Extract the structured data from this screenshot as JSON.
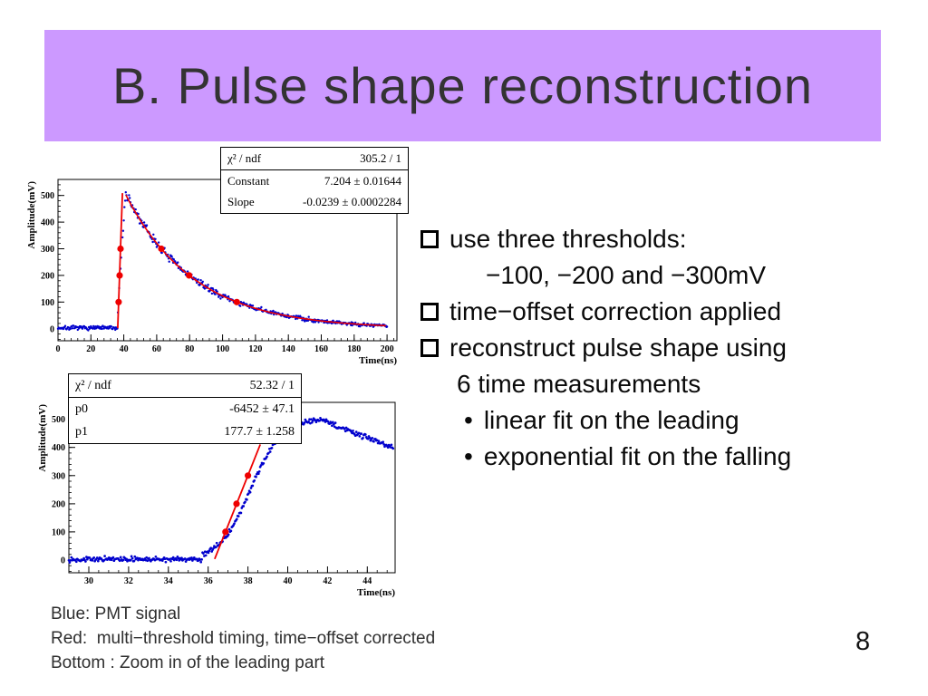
{
  "slide": {
    "title": "B. Pulse shape reconstruction",
    "page_number": "8",
    "accent_color": "#CC99FF"
  },
  "bullets": {
    "dot_char": "•",
    "items": [
      {
        "marker": "square",
        "text": "use three thresholds:"
      },
      {
        "marker": "none",
        "text": "−100, −200 and −300mV"
      },
      {
        "marker": "square",
        "text": "time−offset correction applied"
      },
      {
        "marker": "square",
        "text": "reconstruct pulse shape using"
      },
      {
        "marker": "none",
        "text": "6 time measurements"
      },
      {
        "marker": "dot",
        "text": "linear fit on the leading"
      },
      {
        "marker": "dot",
        "text": "exponential fit on the falling"
      }
    ]
  },
  "caption": {
    "line1": "Blue: PMT signal",
    "line2": "Red:  multi−threshold timing, time−offset corrected",
    "line3": "Bottom : Zoom in of the leading part"
  },
  "chart_data": [
    {
      "id": "pulse-full",
      "type": "scatter",
      "title": "",
      "xlabel": "Time(ns)",
      "ylabel": "Amplitude(mV)",
      "xlim": [
        0,
        206
      ],
      "ylim": [
        -45,
        560
      ],
      "xticks": [
        0,
        20,
        40,
        60,
        80,
        100,
        120,
        140,
        160,
        180,
        200
      ],
      "yticks": [
        0,
        100,
        200,
        300,
        400,
        500
      ],
      "x_minor_div": 5,
      "y_minor_div": 5,
      "grid": false,
      "legend": "none",
      "colors": {
        "signal": "#0000CD",
        "fit": "#EE0000"
      },
      "series_names": {
        "signal": "PMT signal (blue)",
        "fit": "multi−threshold fit (red)"
      },
      "stats": {
        "rows": [
          {
            "label": "χ² / ndf",
            "value": "305.2 / 1"
          },
          {
            "label": "Constant",
            "value": "7.204 ± 0.01644"
          },
          {
            "label": "Slope",
            "value": "-0.0239 ± 0.0002284"
          }
        ]
      },
      "signal_model": {
        "seed": 7,
        "t_start": 0,
        "t_end": 200,
        "t_step": 0.4,
        "segments": [
          {
            "until": 36.0,
            "type": "flat",
            "level": 3,
            "noise": 11
          },
          {
            "until": 41.2,
            "type": "rise_pow",
            "from": 36.0,
            "span": 5.2,
            "peak": 515,
            "pow": 0.85,
            "noise": 16
          },
          {
            "until": 200.2,
            "type": "exp",
            "constant": 7.204,
            "slope": -0.0239,
            "noise_base": 10,
            "noise_prop": 0.05
          }
        ]
      },
      "fits": [
        {
          "type": "linear",
          "p0": -6452,
          "p1": 177.7,
          "range": [
            36.32,
            39.17
          ]
        },
        {
          "type": "exp",
          "constant": 7.204,
          "slope": -0.0239,
          "range": [
            41.3,
            200
          ]
        }
      ],
      "threshold_points": [
        [
          36.87,
          100
        ],
        [
          37.43,
          200
        ],
        [
          38.0,
          300
        ],
        [
          62.8,
          300
        ],
        [
          79.7,
          200
        ],
        [
          108.7,
          100
        ]
      ]
    },
    {
      "id": "pulse-leading-zoom",
      "type": "scatter",
      "title": "",
      "xlabel": "Time(ns)",
      "ylabel": "Amplitude(mV)",
      "xlim": [
        29,
        45.4
      ],
      "ylim": [
        -45,
        560
      ],
      "xticks": [
        30,
        32,
        34,
        36,
        38,
        40,
        42,
        44
      ],
      "yticks": [
        0,
        100,
        200,
        300,
        400,
        500
      ],
      "x_minor_div": 4,
      "y_minor_div": 5,
      "grid": false,
      "legend": "none",
      "colors": {
        "signal": "#0000CD",
        "fit": "#EE0000"
      },
      "series_names": {
        "signal": "PMT signal (blue)",
        "fit": "linear fit on leading edge (red)"
      },
      "stats": {
        "rows": [
          {
            "label": "χ² / ndf",
            "value": "52.32 / 1"
          },
          {
            "label": "p0",
            "value": "-6452 ± 47.1"
          },
          {
            "label": "p1",
            "value": "177.7 ± 1.258"
          }
        ]
      },
      "signal_model": {
        "seed": 13,
        "t_start": 29,
        "t_end": 45.3,
        "t_step": 0.042,
        "segments": [
          {
            "until": 35.7,
            "type": "flat",
            "level": 3,
            "noise": 12
          },
          {
            "until": 41.6,
            "type": "logistic",
            "amp": 505,
            "center": 38.15,
            "width": 0.78,
            "noise": 13
          },
          {
            "until": 45.4,
            "type": "lin",
            "start_t": 41.6,
            "start_y": 500,
            "slope_per_ns": -27,
            "noise": 13
          }
        ]
      },
      "fits": [
        {
          "type": "linear",
          "p0": -6452,
          "p1": 177.7,
          "range": [
            36.33,
            38.62
          ]
        }
      ],
      "threshold_points": [
        [
          36.87,
          100
        ],
        [
          37.43,
          200
        ],
        [
          38.0,
          300
        ]
      ]
    }
  ]
}
